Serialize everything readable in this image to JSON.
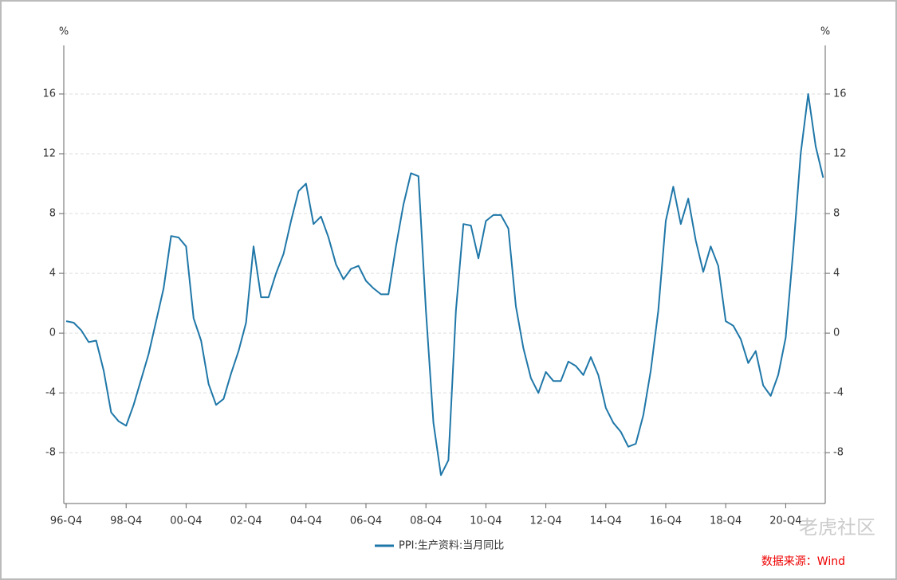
{
  "chart_data": {
    "type": "line",
    "y_label": "%",
    "y2_label": "%",
    "categories": [
      "96-Q4",
      null,
      null,
      null,
      null,
      null,
      null,
      null,
      "98-Q4",
      null,
      null,
      null,
      null,
      null,
      null,
      null,
      "00-Q4",
      null,
      null,
      null,
      null,
      null,
      null,
      null,
      "02-Q4",
      null,
      null,
      null,
      null,
      null,
      null,
      null,
      "04-Q4",
      null,
      null,
      null,
      null,
      null,
      null,
      null,
      "06-Q4",
      null,
      null,
      null,
      null,
      null,
      null,
      null,
      "08-Q4",
      null,
      null,
      null,
      null,
      null,
      null,
      null,
      "10-Q4",
      null,
      null,
      null,
      null,
      null,
      null,
      null,
      "12-Q4",
      null,
      null,
      null,
      null,
      null,
      null,
      null,
      "14-Q4",
      null,
      null,
      null,
      null,
      null,
      null,
      null,
      "16-Q4",
      null,
      null,
      null,
      null,
      null,
      null,
      null,
      "18-Q4",
      null,
      null,
      null,
      null,
      null,
      null,
      null,
      "20-Q4",
      null,
      null,
      null,
      null,
      null
    ],
    "series": [
      {
        "name": "PPI:生产资料:当月同比",
        "color": "#1f77a8",
        "values": [
          0.8,
          0.7,
          0.2,
          -0.6,
          -0.5,
          -2.5,
          -5.3,
          -5.9,
          -6.2,
          -4.8,
          -3.1,
          -1.4,
          0.8,
          3,
          6.5,
          6.4,
          5.8,
          1.0,
          -0.5,
          -3.4,
          -4.8,
          -4.4,
          -2.7,
          -1.2,
          0.7,
          5.8,
          2.4,
          2.4,
          4,
          5.3,
          7.5,
          9.5,
          10,
          7.3,
          7.8,
          6.4,
          4.6,
          3.6,
          4.3,
          4.5,
          3.5,
          3.0,
          2.6,
          2.6,
          5.8,
          8.6,
          10.7,
          10.5,
          1.5,
          -6,
          -9.5,
          -8.5,
          1.5,
          7.3,
          7.2,
          5,
          7.5,
          7.9,
          7.9,
          7,
          1.8,
          -1,
          -3,
          -4,
          -2.6,
          -3.2,
          -3.2,
          -1.9,
          -2.2,
          -2.8,
          -1.6,
          -2.8,
          -5,
          -6,
          -6.6,
          -7.6,
          -7.4,
          -5.5,
          -2.5,
          1.5,
          7.5,
          9.8,
          7.3,
          9,
          6.2,
          4.1,
          5.8,
          4.5,
          0.8,
          0.5,
          -0.4,
          -2,
          -1.2,
          -3.5,
          -4.2,
          -2.8,
          -0.3,
          5.5,
          12,
          16,
          12.5,
          10.4
        ]
      }
    ],
    "ylim": [
      -11.4,
      19.25
    ],
    "yticks": [
      -8,
      -4,
      0,
      4,
      8,
      12,
      16
    ],
    "y2lim": [
      -11.4,
      19.25
    ],
    "y2ticks": [
      -8,
      -4,
      0,
      4,
      8,
      12,
      16
    ],
    "grid": true,
    "legend": "bottom",
    "source": "数据来源：Wind",
    "watermark": "老虎社区"
  }
}
